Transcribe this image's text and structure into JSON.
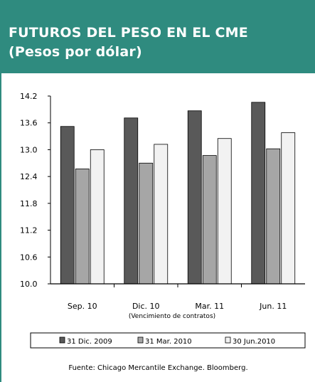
{
  "header": {
    "title_line1": "FUTUROS DEL PESO EN EL CME",
    "title_line2": "(Pesos por dólar)",
    "background": "#2f8b7f"
  },
  "chart_data": {
    "type": "bar",
    "title": "FUTUROS DEL PESO EN EL CME",
    "subtitle": "(Pesos por dólar)",
    "xlabel": "(Vencimiento de contratos)",
    "ylabel": "",
    "categories": [
      "Sep. 10",
      "Dic. 10",
      "Mar. 11",
      "Jun. 11"
    ],
    "series": [
      {
        "name": "31 Dic. 2009",
        "values": [
          13.52,
          13.71,
          13.87,
          14.06
        ],
        "color": "#595959"
      },
      {
        "name": "31 Mar. 2010",
        "values": [
          12.57,
          12.7,
          12.87,
          13.02
        ],
        "color": "#a6a6a6"
      },
      {
        "name": "30 Jun.2010",
        "values": [
          13.0,
          13.12,
          13.25,
          13.38
        ],
        "color": "#f2f2f2"
      }
    ],
    "ylim": [
      10.0,
      14.2
    ],
    "yticks": [
      10.0,
      10.6,
      11.2,
      11.8,
      12.4,
      13.0,
      13.6,
      14.2
    ],
    "ytick_labels": [
      "10.0",
      "10.6",
      "11.2",
      "11.8",
      "12.4",
      "13.0",
      "13.6",
      "14.2"
    ],
    "grid": false,
    "legend_position": "bottom"
  },
  "source": "Fuente: Chicago Mercantile Exchange. Bloomberg."
}
